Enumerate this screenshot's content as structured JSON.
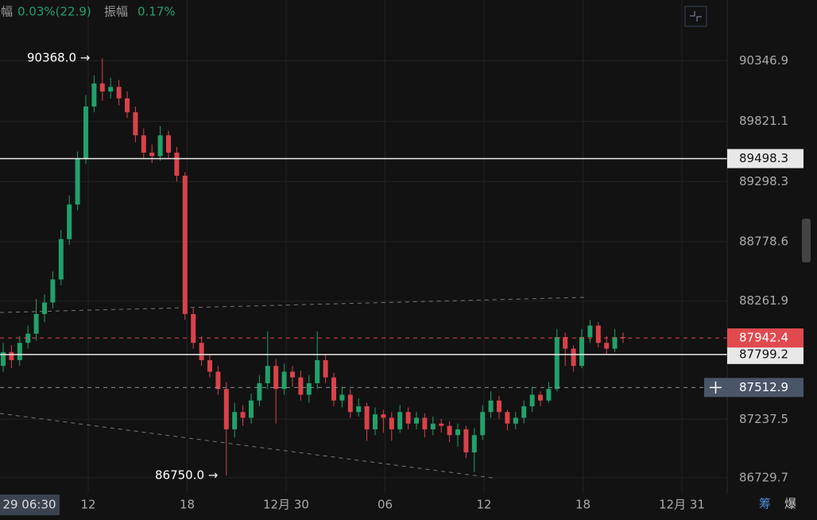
{
  "chart_data": {
    "type": "candlestick",
    "stats": [
      {
        "label": "涨幅",
        "value": "0.03%(22.9)"
      },
      {
        "label": "振幅",
        "value": "0.17%"
      }
    ],
    "open": [
      87700,
      87820,
      87750,
      87900,
      87980,
      88150,
      88250,
      88450,
      88800,
      89100,
      89500,
      89950,
      90150,
      90080,
      90120,
      90020,
      89900,
      89700,
      89550,
      89520,
      89700,
      89550,
      89350,
      88150,
      87900,
      87750,
      87650,
      87500,
      87150,
      87300,
      87250,
      87400,
      87550,
      87700,
      87500,
      87650,
      87600,
      87450,
      87550,
      87750,
      87600,
      87400,
      87450,
      87300,
      87350,
      87150,
      87280,
      87250,
      87150,
      87300,
      87200,
      87250,
      87150,
      87200,
      87180,
      87100,
      87150,
      86950,
      87100,
      87300,
      87400,
      87300,
      87200,
      87250,
      87350,
      87450,
      87400,
      87500,
      87950,
      87850,
      87700,
      87950,
      88050,
      87900,
      87850,
      87950
    ],
    "high": [
      87900,
      87880,
      87960,
      88050,
      88280,
      88320,
      88520,
      88880,
      89180,
      89560,
      90050,
      90220,
      90368,
      90200,
      90180,
      90080,
      89950,
      89760,
      89620,
      89780,
      89740,
      89600,
      89380,
      88200,
      87960,
      87800,
      87700,
      87560,
      87380,
      87360,
      87460,
      87620,
      88000,
      87760,
      87720,
      87700,
      87660,
      87620,
      88000,
      87800,
      87640,
      87520,
      87500,
      87420,
      87380,
      87340,
      87320,
      87300,
      87360,
      87340,
      87300,
      87290,
      87260,
      87240,
      87220,
      87200,
      87180,
      87160,
      87360,
      87480,
      87440,
      87320,
      87300,
      87400,
      87520,
      87480,
      87560,
      88020,
      87990,
      87880,
      88020,
      88100,
      88080,
      87960,
      88020,
      87990
    ],
    "low": [
      87650,
      87680,
      87700,
      87850,
      87920,
      88080,
      88200,
      88400,
      88750,
      89050,
      89450,
      89900,
      90000,
      90020,
      89960,
      89850,
      89640,
      89500,
      89460,
      89480,
      89500,
      89300,
      88100,
      87850,
      87700,
      87600,
      87450,
      86750,
      87080,
      87180,
      87200,
      87350,
      87500,
      87200,
      87450,
      87520,
      87400,
      87380,
      87500,
      87550,
      87350,
      87340,
      87250,
      87260,
      87050,
      87100,
      87120,
      87050,
      87120,
      87150,
      87150,
      87080,
      87100,
      87120,
      87040,
      87000,
      86900,
      86780,
      87060,
      87250,
      87240,
      87140,
      87150,
      87200,
      87300,
      87350,
      87380,
      87480,
      87700,
      87650,
      87680,
      87900,
      87860,
      87800,
      87820,
      87900
    ],
    "close": [
      87820,
      87750,
      87900,
      87980,
      88150,
      88250,
      88450,
      88800,
      89100,
      89500,
      89950,
      90150,
      90080,
      90120,
      90020,
      89900,
      89700,
      89550,
      89520,
      89700,
      89550,
      89350,
      88150,
      87900,
      87750,
      87650,
      87500,
      87150,
      87300,
      87250,
      87400,
      87550,
      87700,
      87500,
      87650,
      87600,
      87450,
      87550,
      87750,
      87600,
      87400,
      87450,
      87300,
      87350,
      87150,
      87280,
      87250,
      87150,
      87300,
      87200,
      87250,
      87150,
      87200,
      87180,
      87100,
      87150,
      86950,
      87100,
      87300,
      87400,
      87300,
      87200,
      87250,
      87350,
      87450,
      87400,
      87500,
      87950,
      87850,
      87700,
      87950,
      88050,
      87900,
      87850,
      87950,
      87942.4
    ],
    "up_color": "#22a06b",
    "down_color": "#d9424a",
    "ylim": [
      86598,
      90874
    ],
    "yticks": [
      90346.9,
      89821.1,
      89298.3,
      88778.6,
      88261.9,
      87237.5,
      86729.7
    ],
    "xticks": [
      "29 06:30",
      "12",
      "18",
      "12月 30",
      "06",
      "12",
      "18",
      "12月 31"
    ],
    "price_lines": [
      {
        "value": 89498.3,
        "color": "#e8e8e8",
        "style": "solid"
      },
      {
        "value": 87799.2,
        "color": "#e8e8e8",
        "style": "solid"
      },
      {
        "value": 87942.4,
        "color": "#e04a4f",
        "style": "dashed"
      },
      {
        "value": 87512.9,
        "color": "#8a8f98",
        "style": "dashed"
      }
    ],
    "annotations": [
      "90368.0 →",
      "86750.0 →"
    ],
    "side_tabs": [
      "筹",
      "爆"
    ],
    "grid": true
  }
}
